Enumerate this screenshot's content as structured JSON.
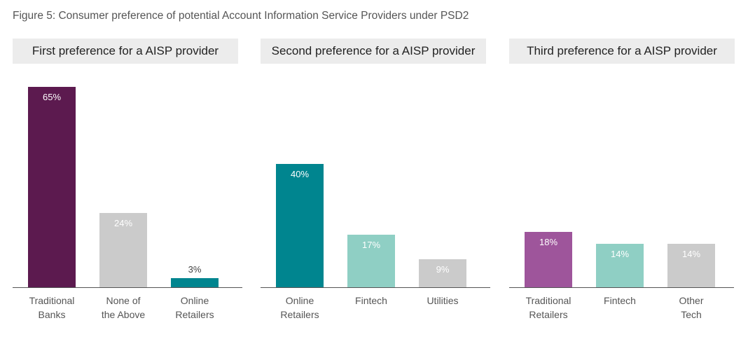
{
  "title": "Figure 5: Consumer preference of potential Account Information Service Providers under PSD2",
  "chart_data": [
    {
      "type": "bar",
      "title": "First preference for a AISP provider",
      "categories": [
        "Traditional\nBanks",
        "None of\nthe Above",
        "Online\nRetailers"
      ],
      "values": [
        65,
        24,
        3
      ],
      "labels": [
        "65%",
        "24%",
        "3%"
      ],
      "colors": [
        "#5c1a4f",
        "#cbcbcb",
        "#00858f"
      ],
      "ylim": [
        0,
        70
      ]
    },
    {
      "type": "bar",
      "title": "Second preference for a AISP provider",
      "categories": [
        "Online\nRetailers",
        "Fintech",
        "Utilities"
      ],
      "values": [
        40,
        17,
        9
      ],
      "labels": [
        "40%",
        "17%",
        "9%"
      ],
      "colors": [
        "#00858f",
        "#8fcfc4",
        "#cbcbcb"
      ],
      "ylim": [
        0,
        70
      ]
    },
    {
      "type": "bar",
      "title": "Third preference for a AISP provider",
      "categories": [
        "Traditional\nRetailers",
        "Fintech",
        "Other\nTech"
      ],
      "values": [
        18,
        14,
        14
      ],
      "labels": [
        "18%",
        "14%",
        "14%"
      ],
      "colors": [
        "#9e559b",
        "#8fcfc4",
        "#cbcbcb"
      ],
      "ylim": [
        0,
        70
      ]
    }
  ]
}
